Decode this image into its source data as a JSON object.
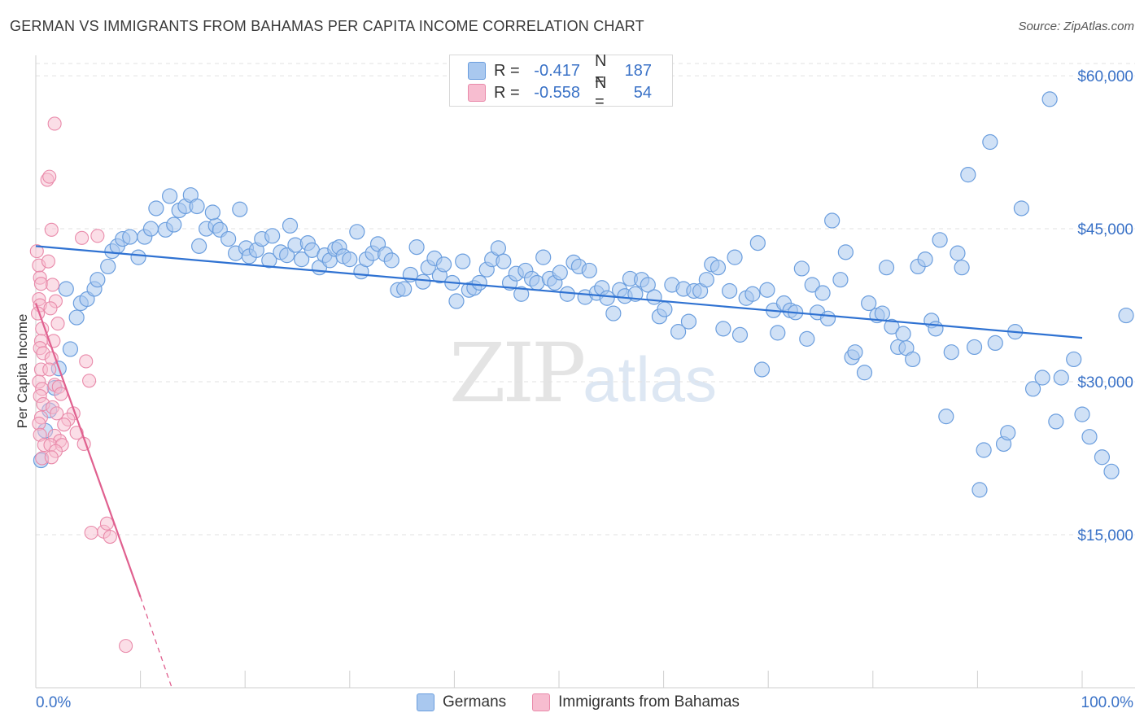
{
  "header": {
    "title": "GERMAN VS IMMIGRANTS FROM BAHAMAS PER CAPITA INCOME CORRELATION CHART",
    "source": "Source: ZipAtlas.com"
  },
  "watermark": {
    "zip": "ZIP",
    "atlas": "atlas"
  },
  "legend_top": [
    {
      "r_label": "R =",
      "r_value": "-0.417",
      "n_label": "N =",
      "n_value": "187"
    },
    {
      "r_label": "R =",
      "r_value": "-0.558",
      "n_label": "N =",
      "n_value": "54"
    }
  ],
  "legend_bottom": [
    {
      "label": "Germans"
    },
    {
      "label": "Immigrants from Bahamas"
    }
  ],
  "colors": {
    "blue_fill": "#a9c8ef",
    "blue_stroke": "#6b9ede",
    "blue_line": "#2f72d2",
    "pink_fill": "#f7bdd0",
    "pink_stroke": "#e98aaa",
    "pink_line": "#e0608f",
    "axis_text": "#3a72c7",
    "grid": "#e2e2e2"
  },
  "chart_data": {
    "type": "scatter",
    "title": "GERMAN VS IMMIGRANTS FROM BAHAMAS PER CAPITA INCOME CORRELATION CHART",
    "xlabel": "",
    "ylabel": "Per Capita Income",
    "x_tick_labels": [
      "0.0%",
      "100.0%"
    ],
    "y_ticks": [
      15000,
      30000,
      45000,
      60000
    ],
    "y_tick_labels": [
      "$15,000",
      "$30,000",
      "$45,000",
      "$60,000"
    ],
    "xlim": [
      0,
      100
    ],
    "ylim": [
      0,
      62000
    ],
    "grid": true,
    "legend_position": "top-center",
    "series": [
      {
        "name": "Germans",
        "trend": [
          [
            0,
            43300
          ],
          [
            100,
            34300
          ]
        ],
        "points": [
          [
            0.5,
            22300
          ],
          [
            0.9,
            25200
          ],
          [
            1.3,
            27200
          ],
          [
            1.8,
            29400
          ],
          [
            2.2,
            31300
          ],
          [
            3.3,
            33200
          ],
          [
            3.9,
            36300
          ],
          [
            2.9,
            39100
          ],
          [
            4.3,
            37700
          ],
          [
            4.9,
            38100
          ],
          [
            5.6,
            39100
          ],
          [
            5.9,
            40000
          ],
          [
            6.9,
            41300
          ],
          [
            7.3,
            42800
          ],
          [
            7.8,
            43300
          ],
          [
            8.3,
            44000
          ],
          [
            9.0,
            44200
          ],
          [
            9.8,
            42200
          ],
          [
            10.4,
            44200
          ],
          [
            11.0,
            45000
          ],
          [
            11.5,
            47000
          ],
          [
            12.4,
            44900
          ],
          [
            12.8,
            48200
          ],
          [
            13.2,
            45400
          ],
          [
            13.7,
            46800
          ],
          [
            14.3,
            47200
          ],
          [
            14.8,
            48300
          ],
          [
            15.4,
            47200
          ],
          [
            15.6,
            43300
          ],
          [
            16.3,
            45000
          ],
          [
            17.2,
            45300
          ],
          [
            16.9,
            46600
          ],
          [
            17.6,
            44900
          ],
          [
            18.4,
            44000
          ],
          [
            19.1,
            42600
          ],
          [
            19.5,
            46900
          ],
          [
            20.1,
            43100
          ],
          [
            20.4,
            42300
          ],
          [
            21.1,
            42900
          ],
          [
            21.6,
            44000
          ],
          [
            22.3,
            41900
          ],
          [
            22.6,
            44300
          ],
          [
            23.4,
            42700
          ],
          [
            24.0,
            42400
          ],
          [
            24.3,
            45300
          ],
          [
            24.8,
            43400
          ],
          [
            25.4,
            42000
          ],
          [
            26.0,
            43600
          ],
          [
            26.4,
            42900
          ],
          [
            27.1,
            41200
          ],
          [
            27.6,
            42400
          ],
          [
            28.1,
            41900
          ],
          [
            28.6,
            43000
          ],
          [
            29.0,
            43200
          ],
          [
            29.4,
            42300
          ],
          [
            30.0,
            42000
          ],
          [
            30.7,
            44700
          ],
          [
            31.1,
            40800
          ],
          [
            31.6,
            42000
          ],
          [
            32.2,
            42600
          ],
          [
            32.7,
            43500
          ],
          [
            33.4,
            42500
          ],
          [
            34.0,
            41900
          ],
          [
            34.6,
            39000
          ],
          [
            35.2,
            39100
          ],
          [
            35.8,
            40500
          ],
          [
            36.4,
            43200
          ],
          [
            37.0,
            39800
          ],
          [
            37.5,
            41200
          ],
          [
            38.1,
            42100
          ],
          [
            38.6,
            40400
          ],
          [
            39.0,
            41500
          ],
          [
            39.8,
            39700
          ],
          [
            40.2,
            37900
          ],
          [
            40.8,
            41800
          ],
          [
            41.4,
            39000
          ],
          [
            41.9,
            39200
          ],
          [
            42.4,
            39700
          ],
          [
            43.1,
            41000
          ],
          [
            43.6,
            42000
          ],
          [
            44.2,
            43100
          ],
          [
            44.7,
            41800
          ],
          [
            45.3,
            39700
          ],
          [
            45.9,
            40600
          ],
          [
            46.4,
            38600
          ],
          [
            46.8,
            40900
          ],
          [
            47.4,
            40100
          ],
          [
            47.9,
            39700
          ],
          [
            48.5,
            42200
          ],
          [
            49.1,
            40100
          ],
          [
            49.6,
            39700
          ],
          [
            50.1,
            40700
          ],
          [
            50.8,
            38600
          ],
          [
            51.4,
            41700
          ],
          [
            51.9,
            41300
          ],
          [
            52.5,
            38300
          ],
          [
            52.9,
            40900
          ],
          [
            53.6,
            38700
          ],
          [
            54.1,
            39200
          ],
          [
            54.6,
            38200
          ],
          [
            55.2,
            36700
          ],
          [
            55.8,
            39000
          ],
          [
            56.3,
            38400
          ],
          [
            56.8,
            40100
          ],
          [
            57.3,
            38600
          ],
          [
            57.9,
            40000
          ],
          [
            58.5,
            39500
          ],
          [
            59.1,
            38300
          ],
          [
            59.6,
            36400
          ],
          [
            60.1,
            37100
          ],
          [
            60.8,
            39500
          ],
          [
            61.4,
            34900
          ],
          [
            61.9,
            39100
          ],
          [
            62.4,
            35900
          ],
          [
            62.9,
            38900
          ],
          [
            63.5,
            38900
          ],
          [
            64.1,
            40000
          ],
          [
            64.6,
            41500
          ],
          [
            65.2,
            41200
          ],
          [
            65.7,
            35200
          ],
          [
            66.3,
            38900
          ],
          [
            66.8,
            42200
          ],
          [
            67.3,
            34600
          ],
          [
            67.9,
            38200
          ],
          [
            68.5,
            38600
          ],
          [
            69.0,
            43600
          ],
          [
            69.4,
            31200
          ],
          [
            69.9,
            39000
          ],
          [
            70.5,
            37000
          ],
          [
            70.9,
            34800
          ],
          [
            71.5,
            37700
          ],
          [
            72.1,
            37000
          ],
          [
            72.6,
            36800
          ],
          [
            73.2,
            41100
          ],
          [
            73.7,
            34200
          ],
          [
            74.2,
            39500
          ],
          [
            74.7,
            36800
          ],
          [
            75.2,
            38700
          ],
          [
            75.7,
            36200
          ],
          [
            76.1,
            45800
          ],
          [
            76.9,
            40000
          ],
          [
            77.4,
            42700
          ],
          [
            78.0,
            32400
          ],
          [
            78.3,
            32900
          ],
          [
            79.2,
            30900
          ],
          [
            79.6,
            37700
          ],
          [
            80.4,
            36500
          ],
          [
            80.9,
            36700
          ],
          [
            81.3,
            41200
          ],
          [
            81.8,
            35400
          ],
          [
            82.4,
            33400
          ],
          [
            82.9,
            34700
          ],
          [
            83.2,
            33300
          ],
          [
            83.8,
            32200
          ],
          [
            84.3,
            41300
          ],
          [
            85.0,
            42000
          ],
          [
            85.6,
            36000
          ],
          [
            86.0,
            35200
          ],
          [
            86.4,
            43900
          ],
          [
            87.0,
            26600
          ],
          [
            87.5,
            32900
          ],
          [
            88.1,
            42600
          ],
          [
            88.5,
            41200
          ],
          [
            89.1,
            50300
          ],
          [
            89.7,
            33400
          ],
          [
            90.2,
            19400
          ],
          [
            90.6,
            23300
          ],
          [
            91.2,
            53500
          ],
          [
            91.7,
            33800
          ],
          [
            92.5,
            23900
          ],
          [
            92.9,
            25000
          ],
          [
            93.6,
            34900
          ],
          [
            94.2,
            47000
          ],
          [
            95.3,
            29300
          ],
          [
            96.2,
            30400
          ],
          [
            96.9,
            57700
          ],
          [
            97.5,
            26100
          ],
          [
            98.0,
            30400
          ],
          [
            99.2,
            32200
          ],
          [
            100.0,
            26800
          ],
          [
            100.7,
            24600
          ],
          [
            101.9,
            22600
          ],
          [
            102.8,
            21200
          ],
          [
            104.2,
            36500
          ]
        ]
      },
      {
        "name": "Immigrants from Bahamas",
        "trend": [
          [
            0,
            37700
          ],
          [
            10,
            8900
          ]
        ],
        "trend_extension": [
          [
            10,
            8900
          ],
          [
            13,
            0
          ]
        ],
        "points": [
          [
            0.1,
            42800
          ],
          [
            0.3,
            41400
          ],
          [
            0.4,
            40200
          ],
          [
            0.5,
            39600
          ],
          [
            0.3,
            38100
          ],
          [
            0.4,
            37500
          ],
          [
            0.2,
            36700
          ],
          [
            0.6,
            35200
          ],
          [
            0.5,
            34000
          ],
          [
            0.4,
            33300
          ],
          [
            0.7,
            32800
          ],
          [
            0.5,
            31200
          ],
          [
            0.3,
            30000
          ],
          [
            0.6,
            29300
          ],
          [
            0.4,
            28600
          ],
          [
            0.7,
            27800
          ],
          [
            0.5,
            26500
          ],
          [
            0.3,
            25900
          ],
          [
            0.4,
            24800
          ],
          [
            0.8,
            23800
          ],
          [
            0.6,
            22500
          ],
          [
            1.1,
            49800
          ],
          [
            1.3,
            50100
          ],
          [
            1.5,
            44900
          ],
          [
            1.8,
            55300
          ],
          [
            1.2,
            41800
          ],
          [
            1.6,
            39500
          ],
          [
            1.9,
            37900
          ],
          [
            1.4,
            37200
          ],
          [
            2.1,
            35700
          ],
          [
            1.7,
            34000
          ],
          [
            1.5,
            32300
          ],
          [
            1.3,
            31200
          ],
          [
            1.8,
            29700
          ],
          [
            2.2,
            29500
          ],
          [
            2.4,
            28800
          ],
          [
            1.6,
            27500
          ],
          [
            2.0,
            26900
          ],
          [
            1.8,
            24700
          ],
          [
            2.3,
            24200
          ],
          [
            1.4,
            23800
          ],
          [
            2.5,
            23800
          ],
          [
            1.9,
            23200
          ],
          [
            1.5,
            22600
          ],
          [
            3.6,
            26900
          ],
          [
            3.1,
            26300
          ],
          [
            2.7,
            25800
          ],
          [
            3.9,
            25000
          ],
          [
            4.6,
            23900
          ],
          [
            4.8,
            32000
          ],
          [
            5.1,
            30100
          ],
          [
            4.4,
            44100
          ],
          [
            5.3,
            15200
          ],
          [
            5.9,
            44300
          ],
          [
            6.5,
            15300
          ],
          [
            6.8,
            16100
          ],
          [
            7.1,
            14800
          ],
          [
            8.6,
            4100
          ]
        ]
      }
    ]
  }
}
